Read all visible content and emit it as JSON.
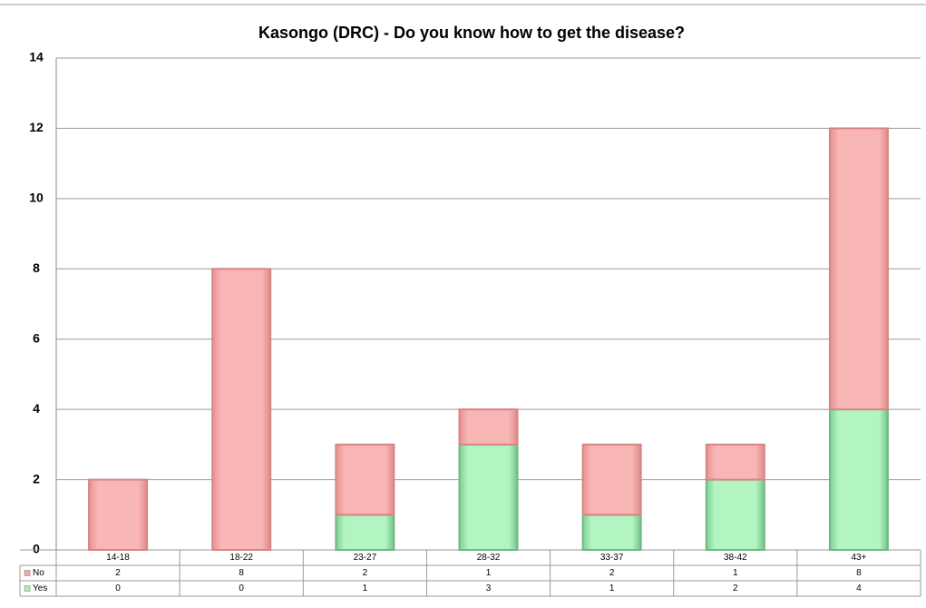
{
  "chart_data": {
    "type": "stacked_bar",
    "title": "Kasongo (DRC) - Do you know how to get the disease?",
    "categories": [
      "14-18",
      "18-22",
      "23-27",
      "28-32",
      "33-37",
      "38-42",
      "43+"
    ],
    "series": [
      {
        "name": "No",
        "color": "#f6a9a9",
        "values": [
          2,
          8,
          2,
          1,
          2,
          1,
          8
        ]
      },
      {
        "name": "Yes",
        "color": "#a9efb9",
        "values": [
          0,
          0,
          1,
          3,
          1,
          2,
          4
        ]
      }
    ],
    "ylim": [
      0,
      14
    ],
    "yticks": [
      0,
      2,
      4,
      6,
      8,
      10,
      12,
      14
    ],
    "grid": true
  }
}
